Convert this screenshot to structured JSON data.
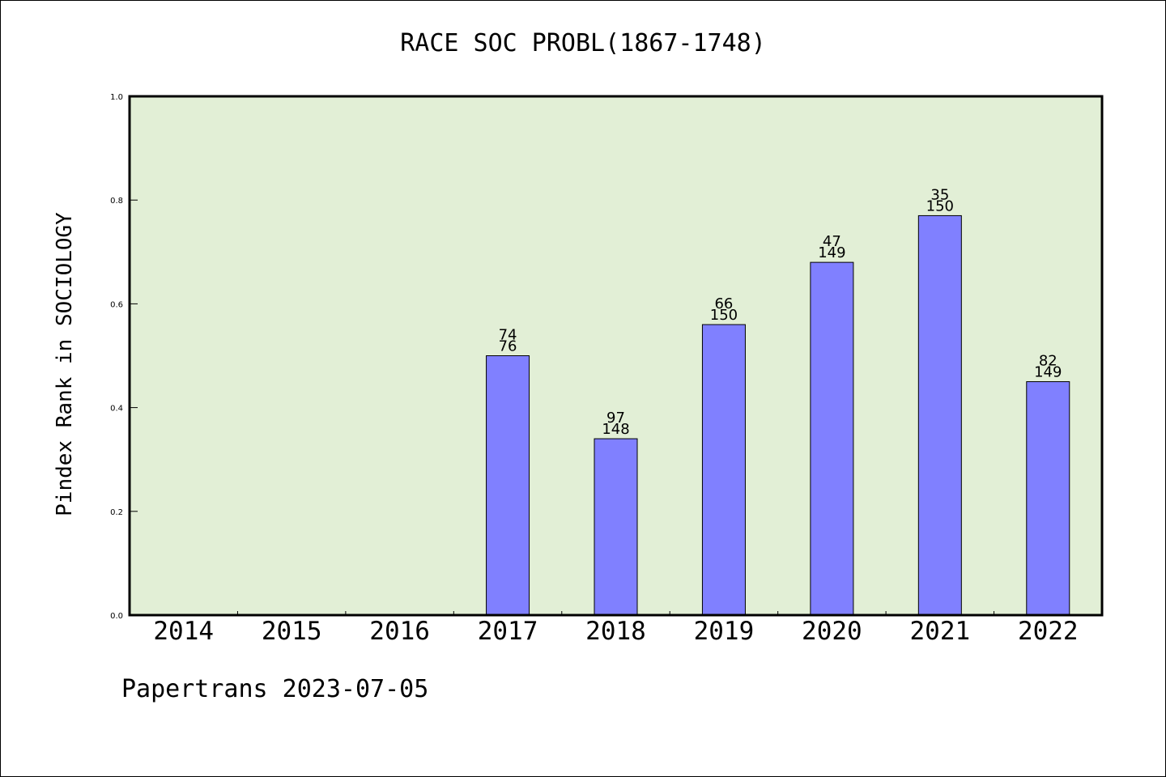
{
  "title": "RACE SOC PROBL(1867-1748)",
  "ylabel": "Pindex Rank in SOCIOLOGY",
  "footer": "Papertrans 2023-07-05",
  "colors": {
    "plot_background": "#e2efd6",
    "bar_fill": "#8080ff",
    "axis": "#000000"
  },
  "chart_data": {
    "type": "bar",
    "title": "RACE SOC PROBL(1867-1748)",
    "xlabel": "",
    "ylabel": "Pindex Rank in SOCIOLOGY",
    "ylim": [
      0,
      1.0
    ],
    "yticks": [
      "0.0",
      "0.2",
      "0.4",
      "0.6",
      "0.8",
      "1.0"
    ],
    "grid": false,
    "categories": [
      "2014",
      "2015",
      "2016",
      "2017",
      "2018",
      "2019",
      "2020",
      "2021",
      "2022"
    ],
    "values": [
      null,
      null,
      null,
      0.5,
      0.34,
      0.56,
      0.68,
      0.77,
      0.45
    ],
    "labels_top": [
      "",
      "",
      "",
      "74",
      "97",
      "66",
      "47",
      "35",
      "82"
    ],
    "labels_bottom": [
      "",
      "",
      "",
      "76",
      "148",
      "150",
      "149",
      "150",
      "149"
    ]
  }
}
